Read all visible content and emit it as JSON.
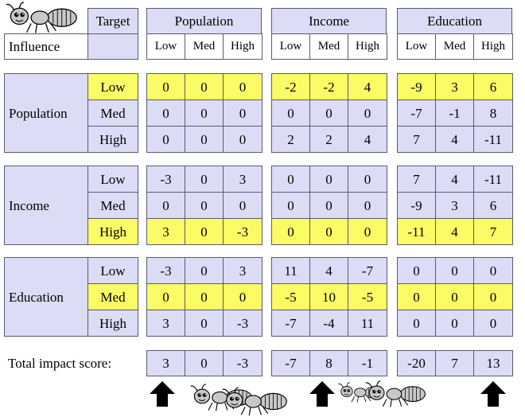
{
  "header": {
    "target_label": "Target",
    "influence_label": "Influence",
    "groups": [
      "Population",
      "Income",
      "Education"
    ],
    "levels": [
      "Low",
      "Med",
      "High"
    ]
  },
  "rows": [
    {
      "label": "Population",
      "highlight_row": 0,
      "values": [
        [
          [
            0,
            0,
            0
          ],
          [
            -2,
            -2,
            4
          ],
          [
            -9,
            3,
            6
          ]
        ],
        [
          [
            0,
            0,
            0
          ],
          [
            0,
            0,
            0
          ],
          [
            -7,
            -1,
            8
          ]
        ],
        [
          [
            0,
            0,
            0
          ],
          [
            2,
            2,
            4
          ],
          [
            7,
            4,
            -11
          ]
        ]
      ]
    },
    {
      "label": "Income",
      "highlight_row": 2,
      "values": [
        [
          [
            -3,
            0,
            3
          ],
          [
            0,
            0,
            0
          ],
          [
            7,
            4,
            -11
          ]
        ],
        [
          [
            0,
            0,
            0
          ],
          [
            0,
            0,
            0
          ],
          [
            -9,
            3,
            6
          ]
        ],
        [
          [
            3,
            0,
            -3
          ],
          [
            0,
            0,
            0
          ],
          [
            -11,
            4,
            7
          ]
        ]
      ]
    },
    {
      "label": "Education",
      "highlight_row": 1,
      "values": [
        [
          [
            -3,
            0,
            3
          ],
          [
            11,
            4,
            -7
          ],
          [
            0,
            0,
            0
          ]
        ],
        [
          [
            0,
            0,
            0
          ],
          [
            -5,
            10,
            -5
          ],
          [
            0,
            0,
            0
          ]
        ],
        [
          [
            3,
            0,
            -3
          ],
          [
            -7,
            -4,
            11
          ],
          [
            0,
            0,
            0
          ]
        ]
      ]
    }
  ],
  "total": {
    "label": "Total impact score:",
    "values": [
      [
        3,
        0,
        -3
      ],
      [
        -7,
        8,
        -1
      ],
      [
        -20,
        7,
        13
      ]
    ]
  },
  "decorations": {
    "arrows": [
      "up-arrow-icon",
      "up-arrow-icon",
      "up-arrow-icon"
    ],
    "ants": [
      "ant-icon",
      "ant-icon",
      "ant-icon",
      "ant-icon",
      "ant-icon"
    ]
  }
}
